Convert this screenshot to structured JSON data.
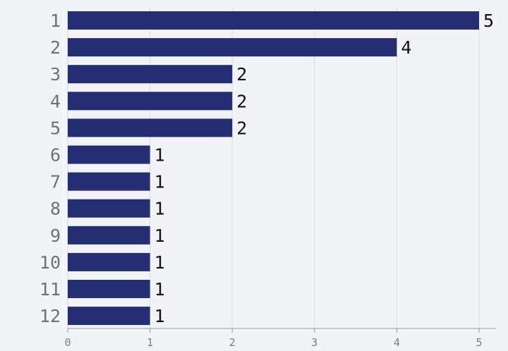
{
  "chart_data": {
    "type": "bar",
    "orientation": "horizontal",
    "categories": [
      "1",
      "2",
      "3",
      "4",
      "5",
      "6",
      "7",
      "8",
      "9",
      "10",
      "11",
      "12"
    ],
    "values": [
      5,
      4,
      2,
      2,
      2,
      1,
      1,
      1,
      1,
      1,
      1,
      1
    ],
    "xlim": [
      0,
      5
    ],
    "x_ticks": [
      "0",
      "1",
      "2",
      "3",
      "4",
      "5"
    ],
    "grid": true,
    "bar_color": "#252e72",
    "background_color": "#f2f3f6",
    "show_value_labels": true
  }
}
